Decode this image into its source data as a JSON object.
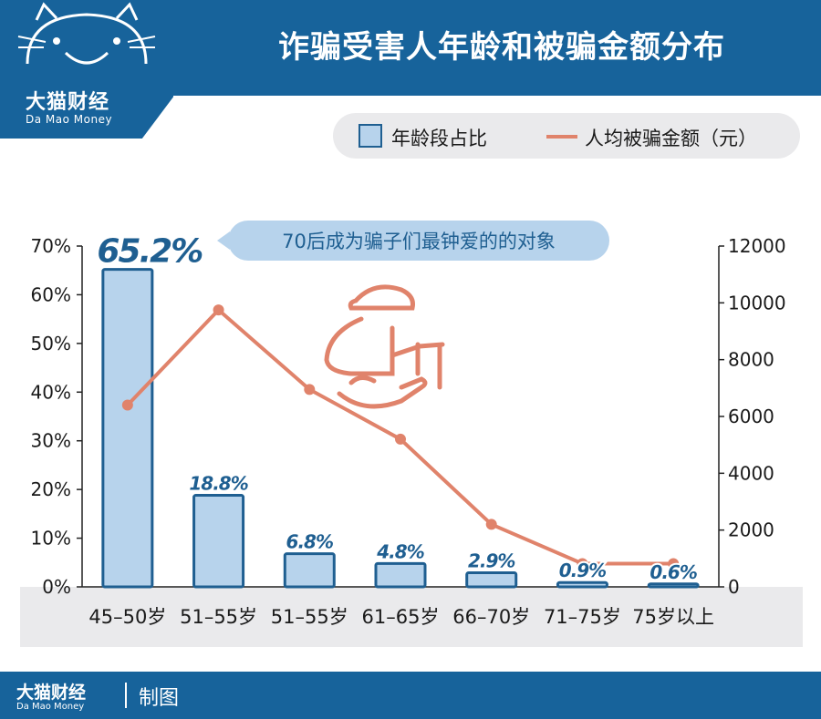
{
  "header": {
    "title": "诈骗受害人年龄和被骗金额分布",
    "logo_cn": "大猫财经",
    "logo_en": "Da Mao Money"
  },
  "footer": {
    "logo_cn": "大猫财经",
    "logo_en": "Da Mao Money",
    "label": "制图"
  },
  "colors": {
    "brand": "#17639b",
    "bar_fill": "#b7d3ec",
    "bar_stroke": "#1f5f91",
    "line": "#e0836b",
    "axis_band": "#eaeaec"
  },
  "chart_data": {
    "type": "bar",
    "categories": [
      "45–50岁",
      "51–55岁",
      "51–55岁",
      "61–65岁",
      "66–70岁",
      "71–75岁",
      "75岁以上"
    ],
    "series": [
      {
        "name": "年龄段占比",
        "type": "bar",
        "axis": "left",
        "values": [
          65.2,
          18.8,
          6.8,
          4.8,
          2.9,
          0.9,
          0.6
        ],
        "labels": [
          "65.2%",
          "18.8%",
          "6.8%",
          "4.8%",
          "2.9%",
          "0.9%",
          "0.6%"
        ]
      },
      {
        "name": "人均被骗金额（元）",
        "type": "line",
        "axis": "right",
        "values": [
          6400,
          9750,
          6950,
          5200,
          2200,
          820,
          820
        ]
      }
    ],
    "y_left": {
      "ylim": [
        0,
        70
      ],
      "ticks": [
        "0%",
        "10%",
        "20%",
        "30%",
        "40%",
        "50%",
        "60%",
        "70%"
      ]
    },
    "y_right": {
      "ylim": [
        0,
        12000
      ],
      "ticks": [
        "0",
        "2000",
        "4000",
        "6000",
        "8000",
        "10000",
        "12000"
      ]
    },
    "annotation": "70后成为骗子们最钟爱的的对象",
    "legend_position": "top-right",
    "grid": false
  }
}
